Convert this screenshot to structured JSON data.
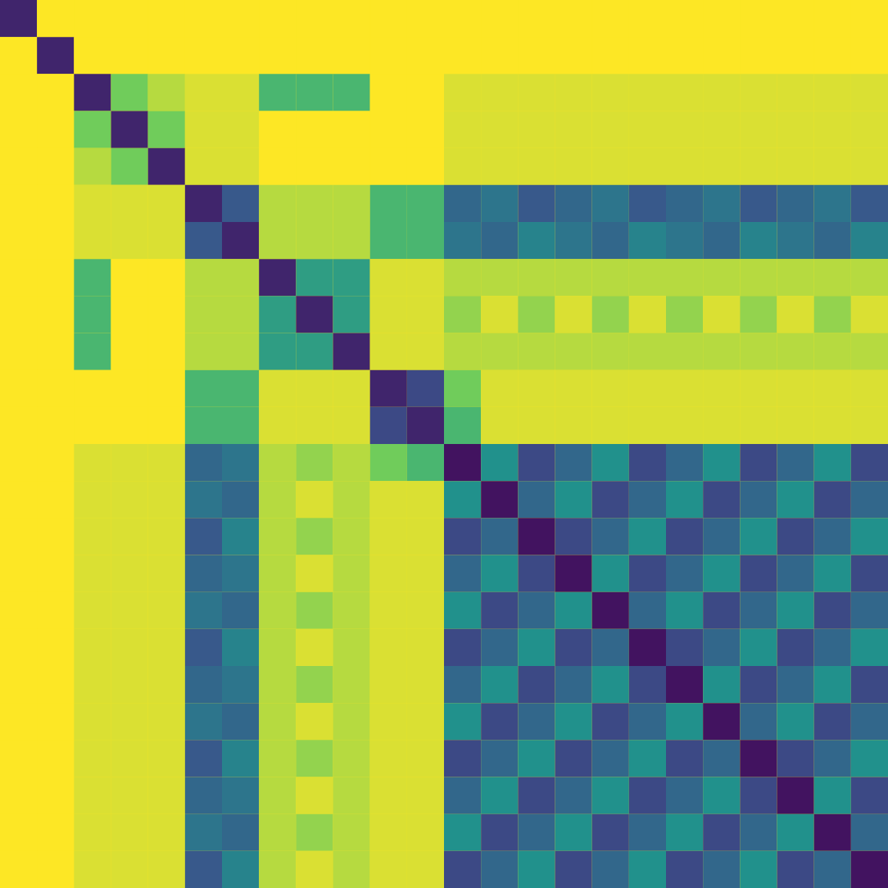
{
  "chart_data": {
    "type": "heatmap",
    "tick_labels": false,
    "zlim": [
      0,
      0.9
    ],
    "cells": [
      [
        0.1,
        0.9,
        0.95,
        0.95,
        0.95,
        0.95,
        0.95,
        0.95,
        0.95,
        0.95,
        0.95,
        0.95,
        0.95,
        0.95,
        0.95,
        0.95,
        0.95,
        0.95,
        0.95,
        0.95,
        0.95,
        0.95,
        0.95,
        0.95
      ],
      [
        0.9,
        0.1,
        0.95,
        0.95,
        0.95,
        0.95,
        0.95,
        0.95,
        0.95,
        0.95,
        0.95,
        0.95,
        0.95,
        0.95,
        0.95,
        0.95,
        0.95,
        0.95,
        0.95,
        0.95,
        0.95,
        0.95,
        0.95,
        0.95
      ],
      [
        0.95,
        0.95,
        0.1,
        0.7,
        0.8,
        0.85,
        0.85,
        0.6,
        0.6,
        0.6,
        0.9,
        0.9,
        0.85,
        0.85,
        0.85,
        0.85,
        0.85,
        0.85,
        0.85,
        0.85,
        0.85,
        0.85,
        0.85,
        0.85
      ],
      [
        0.95,
        0.95,
        0.7,
        0.1,
        0.7,
        0.85,
        0.85,
        0.9,
        0.9,
        0.9,
        0.9,
        0.9,
        0.85,
        0.85,
        0.85,
        0.85,
        0.85,
        0.85,
        0.85,
        0.85,
        0.85,
        0.85,
        0.85,
        0.85
      ],
      [
        0.95,
        0.95,
        0.8,
        0.7,
        0.1,
        0.85,
        0.85,
        0.9,
        0.9,
        0.9,
        0.9,
        0.9,
        0.85,
        0.85,
        0.85,
        0.85,
        0.85,
        0.85,
        0.85,
        0.85,
        0.85,
        0.85,
        0.85,
        0.85
      ],
      [
        0.95,
        0.95,
        0.85,
        0.85,
        0.85,
        0.1,
        0.25,
        0.8,
        0.8,
        0.8,
        0.6,
        0.6,
        0.3,
        0.35,
        0.25,
        0.3,
        0.35,
        0.25,
        0.3,
        0.35,
        0.25,
        0.3,
        0.35,
        0.25
      ],
      [
        0.95,
        0.95,
        0.85,
        0.85,
        0.85,
        0.25,
        0.1,
        0.8,
        0.8,
        0.8,
        0.6,
        0.6,
        0.35,
        0.3,
        0.4,
        0.35,
        0.3,
        0.4,
        0.35,
        0.3,
        0.4,
        0.35,
        0.3,
        0.4
      ],
      [
        0.95,
        0.95,
        0.6,
        0.9,
        0.9,
        0.8,
        0.8,
        0.1,
        0.5,
        0.5,
        0.85,
        0.85,
        0.8,
        0.8,
        0.8,
        0.8,
        0.8,
        0.8,
        0.8,
        0.8,
        0.8,
        0.8,
        0.8,
        0.8
      ],
      [
        0.95,
        0.95,
        0.6,
        0.9,
        0.9,
        0.8,
        0.8,
        0.5,
        0.1,
        0.5,
        0.85,
        0.85,
        0.75,
        0.85,
        0.75,
        0.85,
        0.75,
        0.85,
        0.75,
        0.85,
        0.75,
        0.85,
        0.75,
        0.85
      ],
      [
        0.95,
        0.95,
        0.6,
        0.9,
        0.9,
        0.8,
        0.8,
        0.5,
        0.5,
        0.1,
        0.85,
        0.85,
        0.8,
        0.8,
        0.8,
        0.8,
        0.8,
        0.8,
        0.8,
        0.8,
        0.8,
        0.8,
        0.8,
        0.8
      ],
      [
        0.95,
        0.95,
        0.9,
        0.9,
        0.9,
        0.6,
        0.6,
        0.85,
        0.85,
        0.85,
        0.1,
        0.2,
        0.7,
        0.85,
        0.85,
        0.85,
        0.85,
        0.85,
        0.85,
        0.85,
        0.85,
        0.85,
        0.85,
        0.85
      ],
      [
        0.95,
        0.95,
        0.9,
        0.9,
        0.9,
        0.6,
        0.6,
        0.85,
        0.85,
        0.85,
        0.2,
        0.1,
        0.6,
        0.85,
        0.85,
        0.85,
        0.85,
        0.85,
        0.85,
        0.85,
        0.85,
        0.85,
        0.85,
        0.85
      ],
      [
        0.95,
        0.95,
        0.85,
        0.85,
        0.85,
        0.3,
        0.35,
        0.8,
        0.75,
        0.8,
        0.7,
        0.6,
        0.05,
        0.45,
        0.2,
        0.3,
        0.45,
        0.2,
        0.3,
        0.45,
        0.2,
        0.3,
        0.45,
        0.2
      ],
      [
        0.95,
        0.95,
        0.85,
        0.85,
        0.85,
        0.35,
        0.3,
        0.8,
        0.85,
        0.8,
        0.85,
        0.85,
        0.45,
        0.05,
        0.3,
        0.45,
        0.2,
        0.3,
        0.45,
        0.2,
        0.3,
        0.45,
        0.2,
        0.3
      ],
      [
        0.95,
        0.95,
        0.85,
        0.85,
        0.85,
        0.25,
        0.4,
        0.8,
        0.75,
        0.8,
        0.85,
        0.85,
        0.2,
        0.3,
        0.05,
        0.2,
        0.3,
        0.45,
        0.2,
        0.3,
        0.45,
        0.2,
        0.3,
        0.45
      ],
      [
        0.95,
        0.95,
        0.85,
        0.85,
        0.85,
        0.3,
        0.35,
        0.8,
        0.85,
        0.8,
        0.85,
        0.85,
        0.3,
        0.45,
        0.2,
        0.05,
        0.45,
        0.2,
        0.3,
        0.45,
        0.2,
        0.3,
        0.45,
        0.2
      ],
      [
        0.95,
        0.95,
        0.85,
        0.85,
        0.85,
        0.35,
        0.3,
        0.8,
        0.75,
        0.8,
        0.85,
        0.85,
        0.45,
        0.2,
        0.3,
        0.45,
        0.05,
        0.3,
        0.45,
        0.2,
        0.3,
        0.45,
        0.2,
        0.3
      ],
      [
        0.95,
        0.95,
        0.85,
        0.85,
        0.85,
        0.25,
        0.4,
        0.8,
        0.85,
        0.8,
        0.85,
        0.85,
        0.2,
        0.3,
        0.45,
        0.2,
        0.3,
        0.05,
        0.2,
        0.3,
        0.45,
        0.2,
        0.3,
        0.45
      ],
      [
        0.95,
        0.95,
        0.85,
        0.85,
        0.85,
        0.3,
        0.35,
        0.8,
        0.75,
        0.8,
        0.85,
        0.85,
        0.3,
        0.45,
        0.2,
        0.3,
        0.45,
        0.2,
        0.05,
        0.45,
        0.2,
        0.3,
        0.45,
        0.2
      ],
      [
        0.95,
        0.95,
        0.85,
        0.85,
        0.85,
        0.35,
        0.3,
        0.8,
        0.85,
        0.8,
        0.85,
        0.85,
        0.45,
        0.2,
        0.3,
        0.45,
        0.2,
        0.3,
        0.45,
        0.05,
        0.3,
        0.45,
        0.2,
        0.3
      ],
      [
        0.95,
        0.95,
        0.85,
        0.85,
        0.85,
        0.25,
        0.4,
        0.8,
        0.75,
        0.8,
        0.85,
        0.85,
        0.2,
        0.3,
        0.45,
        0.2,
        0.3,
        0.45,
        0.2,
        0.3,
        0.05,
        0.2,
        0.3,
        0.45
      ],
      [
        0.95,
        0.95,
        0.85,
        0.85,
        0.85,
        0.3,
        0.35,
        0.8,
        0.85,
        0.8,
        0.85,
        0.85,
        0.3,
        0.45,
        0.2,
        0.3,
        0.45,
        0.2,
        0.3,
        0.45,
        0.2,
        0.05,
        0.45,
        0.2
      ],
      [
        0.95,
        0.95,
        0.85,
        0.85,
        0.85,
        0.35,
        0.3,
        0.8,
        0.75,
        0.8,
        0.85,
        0.85,
        0.45,
        0.2,
        0.3,
        0.45,
        0.2,
        0.3,
        0.45,
        0.2,
        0.3,
        0.45,
        0.05,
        0.3
      ],
      [
        0.95,
        0.95,
        0.85,
        0.85,
        0.85,
        0.25,
        0.4,
        0.8,
        0.85,
        0.8,
        0.85,
        0.85,
        0.2,
        0.3,
        0.45,
        0.2,
        0.3,
        0.45,
        0.2,
        0.3,
        0.45,
        0.2,
        0.3,
        0.05
      ]
    ]
  }
}
